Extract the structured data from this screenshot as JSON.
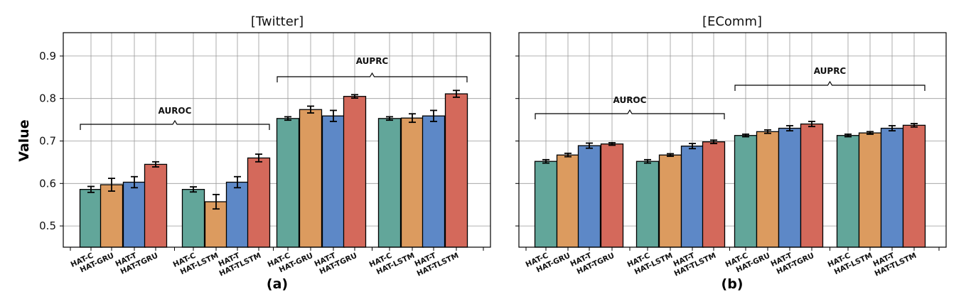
{
  "y_axis_label": "Value",
  "colors": {
    "HAT-C": "#62a69a",
    "HAT-GRU": "#dc9b5f",
    "HAT-LSTM": "#dc9b5f",
    "HAT-T": "#5d88c7",
    "HAT-TGRU": "#d4695b",
    "HAT-TLSTM": "#d4695b"
  },
  "chart_data": [
    {
      "type": "bar",
      "title": "[Twitter]",
      "sublabel": "(a)",
      "ylabel": "Value",
      "ylim": [
        0.45,
        0.955
      ],
      "yticks": [
        "0.5",
        "0.6",
        "0.7",
        "0.8",
        "0.9"
      ],
      "grid": true,
      "groups": [
        {
          "bracket": "AUROC",
          "categories": [
            "HAT-C",
            "HAT-GRU",
            "HAT-T",
            "HAT-TGRU"
          ],
          "values": [
            0.586,
            0.597,
            0.603,
            0.645
          ],
          "errors": [
            0.007,
            0.015,
            0.013,
            0.006
          ]
        },
        {
          "bracket": "AUROC",
          "categories": [
            "HAT-C",
            "HAT-LSTM",
            "HAT-T",
            "HAT-TLSTM"
          ],
          "values": [
            0.586,
            0.557,
            0.603,
            0.66
          ],
          "errors": [
            0.006,
            0.017,
            0.013,
            0.009
          ]
        },
        {
          "bracket": "AUPRC",
          "categories": [
            "HAT-C",
            "HAT-GRU",
            "HAT-T",
            "HAT-TGRU"
          ],
          "values": [
            0.753,
            0.774,
            0.759,
            0.805
          ],
          "errors": [
            0.004,
            0.008,
            0.013,
            0.004
          ]
        },
        {
          "bracket": "AUPRC",
          "categories": [
            "HAT-C",
            "HAT-LSTM",
            "HAT-T",
            "HAT-TLSTM"
          ],
          "values": [
            0.753,
            0.754,
            0.759,
            0.811
          ],
          "errors": [
            0.004,
            0.01,
            0.013,
            0.008
          ]
        }
      ],
      "brackets": [
        {
          "label": "AUROC",
          "groups": [
            0,
            1
          ]
        },
        {
          "label": "AUPRC",
          "groups": [
            2,
            3
          ]
        }
      ]
    },
    {
      "type": "bar",
      "title": "[EComm]",
      "sublabel": "(b)",
      "ylabel": "",
      "ylim": [
        0.45,
        0.955
      ],
      "yticks": [],
      "grid": true,
      "groups": [
        {
          "bracket": "AUROC",
          "categories": [
            "HAT-C",
            "HAT-GRU",
            "HAT-T",
            "HAT-TGRU"
          ],
          "values": [
            0.652,
            0.667,
            0.689,
            0.693
          ],
          "errors": [
            0.004,
            0.004,
            0.006,
            0.003
          ]
        },
        {
          "bracket": "AUROC",
          "categories": [
            "HAT-C",
            "HAT-LSTM",
            "HAT-T",
            "HAT-TLSTM"
          ],
          "values": [
            0.652,
            0.667,
            0.688,
            0.698
          ],
          "errors": [
            0.004,
            0.003,
            0.006,
            0.004
          ]
        },
        {
          "bracket": "AUPRC",
          "categories": [
            "HAT-C",
            "HAT-GRU",
            "HAT-T",
            "HAT-TGRU"
          ],
          "values": [
            0.713,
            0.722,
            0.73,
            0.74
          ],
          "errors": [
            0.003,
            0.004,
            0.006,
            0.006
          ]
        },
        {
          "bracket": "AUPRC",
          "categories": [
            "HAT-C",
            "HAT-LSTM",
            "HAT-T",
            "HAT-TLSTM"
          ],
          "values": [
            0.713,
            0.719,
            0.73,
            0.737
          ],
          "errors": [
            0.003,
            0.003,
            0.006,
            0.004
          ]
        }
      ],
      "brackets": [
        {
          "label": "AUROC",
          "groups": [
            0,
            1
          ]
        },
        {
          "label": "AUPRC",
          "groups": [
            2,
            3
          ]
        }
      ]
    }
  ]
}
